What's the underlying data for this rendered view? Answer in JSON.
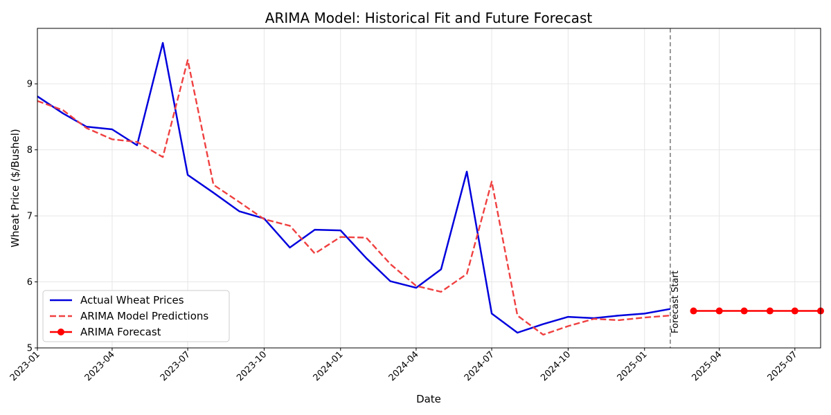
{
  "chart_data": {
    "type": "line",
    "title": "ARIMA Model: Historical Fit and Future Forecast",
    "xlabel": "Date",
    "ylabel": "Wheat Price ($/Bushel)",
    "xlim": [
      "2023-01-01",
      "2025-08-01"
    ],
    "ylim": [
      5,
      9.84
    ],
    "yticks": [
      5,
      6,
      7,
      8,
      9
    ],
    "xticks": [
      "2023-01",
      "2023-04",
      "2023-07",
      "2023-10",
      "2024-01",
      "2024-04",
      "2024-07",
      "2024-10",
      "2025-01",
      "2025-04",
      "2025-07"
    ],
    "grid": true,
    "legend_position": "lower-left",
    "forecast_start": {
      "x": "2025-02-01",
      "label": "Forecast Start",
      "color": "#808080"
    },
    "series": [
      {
        "name": "Actual Wheat Prices",
        "color": "#0000dd",
        "style": "solid",
        "x": [
          "2023-01-01",
          "2023-02-01",
          "2023-03-01",
          "2023-04-01",
          "2023-05-01",
          "2023-06-01",
          "2023-07-01",
          "2023-08-01",
          "2023-09-01",
          "2023-10-01",
          "2023-11-01",
          "2023-12-01",
          "2024-01-01",
          "2024-02-01",
          "2024-03-01",
          "2024-04-01",
          "2024-05-01",
          "2024-06-01",
          "2024-07-01",
          "2024-08-01",
          "2024-09-01",
          "2024-10-01",
          "2024-11-01",
          "2024-12-01",
          "2025-01-01",
          "2025-02-01"
        ],
        "y": [
          8.81,
          8.55,
          8.35,
          8.31,
          8.07,
          9.62,
          7.62,
          7.35,
          7.07,
          6.96,
          6.52,
          6.79,
          6.78,
          6.36,
          6.01,
          5.91,
          6.19,
          7.67,
          5.52,
          5.23,
          5.36,
          5.47,
          5.45,
          5.49,
          5.52,
          5.59
        ]
      },
      {
        "name": "ARIMA Model Predictions",
        "color": "#f04040",
        "style": "dashed",
        "x": [
          "2023-01-01",
          "2023-02-01",
          "2023-03-01",
          "2023-04-01",
          "2023-05-01",
          "2023-06-01",
          "2023-07-01",
          "2023-08-01",
          "2023-09-01",
          "2023-10-01",
          "2023-11-01",
          "2023-12-01",
          "2024-01-01",
          "2024-02-01",
          "2024-03-01",
          "2024-04-01",
          "2024-05-01",
          "2024-06-01",
          "2024-07-01",
          "2024-08-01",
          "2024-09-01",
          "2024-10-01",
          "2024-11-01",
          "2024-12-01",
          "2025-01-01",
          "2025-02-01"
        ],
        "y": [
          8.74,
          8.6,
          8.33,
          8.16,
          8.12,
          7.89,
          9.36,
          7.47,
          7.21,
          6.95,
          6.85,
          6.43,
          6.68,
          6.67,
          6.27,
          5.94,
          5.85,
          6.12,
          7.52,
          5.49,
          5.2,
          5.33,
          5.44,
          5.42,
          5.46,
          5.49
        ]
      },
      {
        "name": "ARIMA Forecast",
        "color": "#ff0000",
        "style": "solid-markers",
        "x": [
          "2025-03-01",
          "2025-04-01",
          "2025-05-01",
          "2025-06-01",
          "2025-07-01",
          "2025-08-01"
        ],
        "y": [
          5.56,
          5.56,
          5.56,
          5.56,
          5.56,
          5.56
        ]
      }
    ]
  }
}
